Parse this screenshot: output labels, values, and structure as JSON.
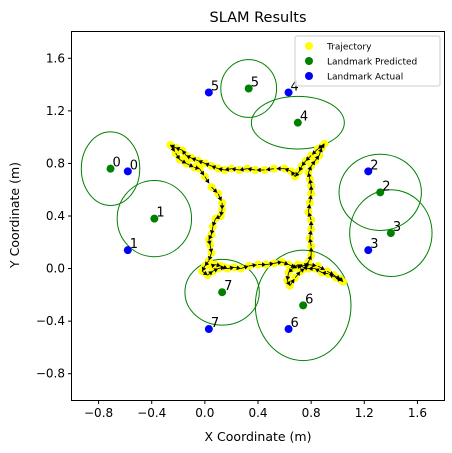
{
  "chart_data": {
    "type": "scatter",
    "title": "SLAM Results",
    "xlabel": "X Coordinate (m)",
    "ylabel": "Y Coordinate (m)",
    "xlim": [
      -1.0,
      1.8
    ],
    "ylim": [
      -1.0,
      1.8
    ],
    "xticks": [
      -0.8,
      -0.4,
      0.0,
      0.4,
      0.8,
      1.2,
      1.6
    ],
    "yticks": [
      -0.8,
      -0.4,
      0.0,
      0.4,
      0.8,
      1.2,
      1.6
    ],
    "xtick_labels": [
      "−0.8",
      "−0.4",
      "0.0",
      "0.4",
      "0.8",
      "1.2",
      "1.6"
    ],
    "ytick_labels": [
      "−0.8",
      "−0.4",
      "0.0",
      "0.4",
      "0.8",
      "1.2",
      "1.6"
    ],
    "grid": false,
    "legend_position": "top-right",
    "colors": {
      "trajectory": "#ffff00",
      "predicted": "#008000",
      "actual": "#0000ff",
      "ellipse": "#008000",
      "arrow": "#000000"
    },
    "series": [
      {
        "name": "Trajectory",
        "points": [
          [
            0.05,
            0.02
          ],
          [
            0.08,
            0.03
          ],
          [
            0.12,
            0.02
          ],
          [
            0.17,
            0.0
          ],
          [
            0.22,
            0.01
          ],
          [
            0.27,
            0.0
          ],
          [
            0.33,
            0.02
          ],
          [
            0.4,
            0.03
          ],
          [
            0.46,
            0.03
          ],
          [
            0.52,
            0.04
          ],
          [
            0.58,
            0.05
          ],
          [
            0.63,
            0.03
          ],
          [
            0.68,
            0.01
          ],
          [
            0.73,
            0.02
          ],
          [
            0.78,
            0.03
          ],
          [
            0.85,
            0.02
          ],
          [
            0.92,
            -0.02
          ],
          [
            0.97,
            -0.05
          ],
          [
            1.02,
            -0.08
          ],
          [
            1.04,
            -0.1
          ],
          [
            0.99,
            -0.07
          ],
          [
            0.93,
            -0.04
          ],
          [
            0.88,
            -0.03
          ],
          [
            0.83,
            0.0
          ],
          [
            0.78,
            0.0
          ],
          [
            0.74,
            0.01
          ],
          [
            0.7,
            0.03
          ],
          [
            0.66,
            0.0
          ],
          [
            0.63,
            -0.03
          ],
          [
            0.62,
            -0.09
          ],
          [
            0.64,
            -0.13
          ],
          [
            0.68,
            -0.07
          ],
          [
            0.72,
            -0.02
          ],
          [
            0.75,
            0.0
          ],
          [
            0.78,
            0.05
          ],
          [
            0.8,
            0.1
          ],
          [
            0.8,
            0.17
          ],
          [
            0.79,
            0.23
          ],
          [
            0.8,
            0.3
          ],
          [
            0.8,
            0.37
          ],
          [
            0.78,
            0.43
          ],
          [
            0.79,
            0.5
          ],
          [
            0.8,
            0.57
          ],
          [
            0.8,
            0.63
          ],
          [
            0.79,
            0.68
          ],
          [
            0.78,
            0.73
          ],
          [
            0.8,
            0.78
          ],
          [
            0.83,
            0.82
          ],
          [
            0.86,
            0.86
          ],
          [
            0.88,
            0.92
          ],
          [
            0.9,
            0.95
          ],
          [
            0.85,
            0.91
          ],
          [
            0.8,
            0.86
          ],
          [
            0.76,
            0.82
          ],
          [
            0.73,
            0.78
          ],
          [
            0.71,
            0.74
          ],
          [
            0.68,
            0.7
          ],
          [
            0.65,
            0.74
          ],
          [
            0.6,
            0.76
          ],
          [
            0.52,
            0.76
          ],
          [
            0.45,
            0.75
          ],
          [
            0.38,
            0.75
          ],
          [
            0.32,
            0.76
          ],
          [
            0.26,
            0.75
          ],
          [
            0.2,
            0.76
          ],
          [
            0.15,
            0.75
          ],
          [
            0.1,
            0.76
          ],
          [
            0.05,
            0.78
          ],
          [
            0.0,
            0.8
          ],
          [
            -0.05,
            0.82
          ],
          [
            -0.1,
            0.84
          ],
          [
            -0.14,
            0.86
          ],
          [
            -0.17,
            0.9
          ],
          [
            -0.22,
            0.92
          ],
          [
            -0.26,
            0.94
          ],
          [
            -0.22,
            0.88
          ],
          [
            -0.19,
            0.83
          ],
          [
            -0.14,
            0.8
          ],
          [
            -0.08,
            0.77
          ],
          [
            -0.04,
            0.76
          ],
          [
            0.0,
            0.7
          ],
          [
            0.05,
            0.62
          ],
          [
            0.1,
            0.57
          ],
          [
            0.13,
            0.5
          ],
          [
            0.13,
            0.45
          ],
          [
            0.12,
            0.4
          ],
          [
            0.08,
            0.38
          ],
          [
            0.06,
            0.32
          ],
          [
            0.05,
            0.26
          ],
          [
            0.03,
            0.22
          ],
          [
            0.04,
            0.18
          ],
          [
            0.05,
            0.12
          ],
          [
            0.03,
            0.06
          ],
          [
            0.0,
            0.02
          ],
          [
            -0.02,
            -0.02
          ],
          [
            0.02,
            -0.05
          ],
          [
            0.06,
            -0.02
          ],
          [
            0.1,
            0.0
          ],
          [
            0.15,
            0.01
          ]
        ]
      },
      {
        "name": "Landmark Predicted",
        "points": [
          {
            "label": "0",
            "x": -0.71,
            "y": 0.76,
            "rx": 0.22,
            "ry": 0.28
          },
          {
            "label": "1",
            "x": -0.38,
            "y": 0.38,
            "rx": 0.28,
            "ry": 0.29
          },
          {
            "label": "2",
            "x": 1.32,
            "y": 0.58,
            "rx": 0.31,
            "ry": 0.29
          },
          {
            "label": "3",
            "x": 1.4,
            "y": 0.27,
            "rx": 0.31,
            "ry": 0.33
          },
          {
            "label": "4",
            "x": 0.7,
            "y": 1.11,
            "rx": 0.35,
            "ry": 0.2
          },
          {
            "label": "5",
            "x": 0.33,
            "y": 1.37,
            "rx": 0.21,
            "ry": 0.22
          },
          {
            "label": "6",
            "x": 0.74,
            "y": -0.28,
            "rx": 0.36,
            "ry": 0.42
          },
          {
            "label": "7",
            "x": 0.13,
            "y": -0.18,
            "rx": 0.28,
            "ry": 0.25
          }
        ]
      },
      {
        "name": "Landmark Actual",
        "points": [
          {
            "label": "0",
            "x": -0.58,
            "y": 0.74
          },
          {
            "label": "1",
            "x": -0.58,
            "y": 0.14
          },
          {
            "label": "2",
            "x": 1.23,
            "y": 0.74
          },
          {
            "label": "3",
            "x": 1.23,
            "y": 0.14
          },
          {
            "label": "4",
            "x": 0.63,
            "y": 1.34
          },
          {
            "label": "5",
            "x": 0.03,
            "y": 1.34
          },
          {
            "label": "6",
            "x": 0.63,
            "y": -0.46
          },
          {
            "label": "7",
            "x": 0.03,
            "y": -0.46
          }
        ]
      }
    ]
  }
}
